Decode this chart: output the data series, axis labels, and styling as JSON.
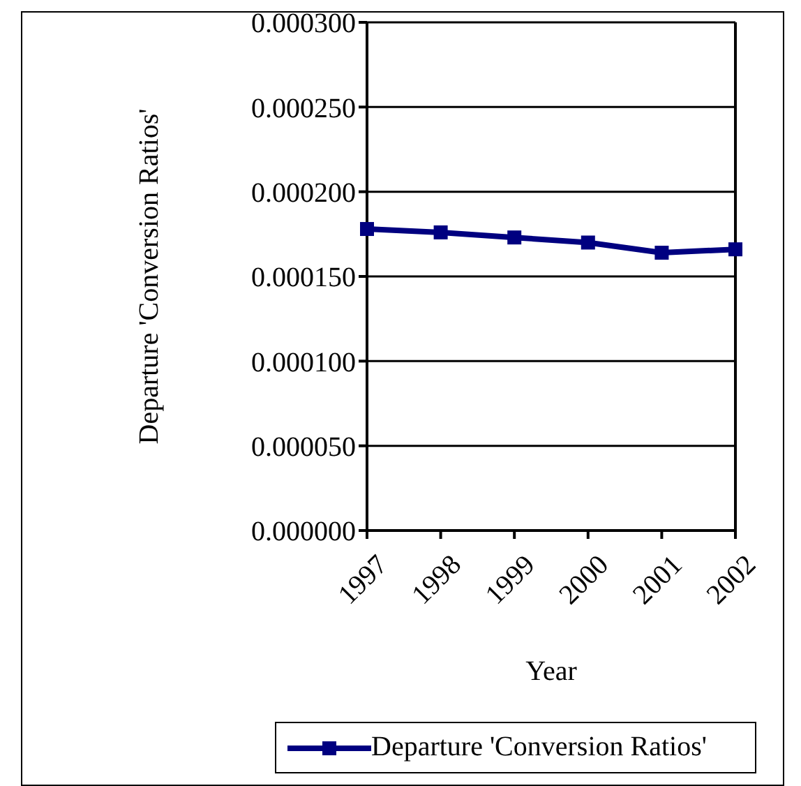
{
  "chart_data": {
    "type": "line",
    "xlabel": "Year",
    "ylabel": "Departure 'Conversion Ratios'",
    "categories": [
      "1997",
      "1998",
      "1999",
      "2000",
      "2001",
      "2002"
    ],
    "series": [
      {
        "name": "Departure 'Conversion Ratios'",
        "color": "#000080",
        "values": [
          0.000178,
          0.000176,
          0.000173,
          0.00017,
          0.000164,
          0.000166
        ]
      }
    ],
    "ylim": [
      0,
      0.0003
    ],
    "yticks": [
      {
        "value": 0,
        "label": "0.000000"
      },
      {
        "value": 5e-05,
        "label": "0.000050"
      },
      {
        "value": 0.0001,
        "label": "0.000100"
      },
      {
        "value": 0.00015,
        "label": "0.000150"
      },
      {
        "value": 0.0002,
        "label": "0.000200"
      },
      {
        "value": 0.00025,
        "label": "0.000250"
      },
      {
        "value": 0.0003,
        "label": "0.000300"
      }
    ],
    "grid": "y",
    "legend": "bottom",
    "marker": "square",
    "line_style": "solid"
  }
}
